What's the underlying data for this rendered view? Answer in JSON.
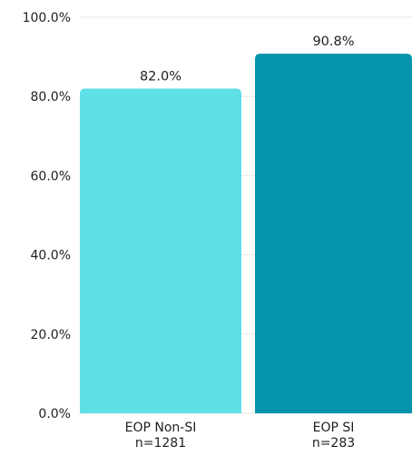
{
  "chart_data": {
    "type": "bar",
    "categories": [
      [
        "EOP Non-SI",
        "n=1281"
      ],
      [
        "EOP SI",
        "n=283"
      ]
    ],
    "values": [
      82.0,
      90.8
    ],
    "value_labels": [
      "82.0%",
      "90.8%"
    ],
    "y_ticks": [
      0,
      20,
      40,
      60,
      80,
      100
    ],
    "y_tick_labels": [
      "0.0%",
      "20.0%",
      "40.0%",
      "60.0%",
      "80.0%",
      "100.0%"
    ],
    "ylim": [
      0,
      100
    ],
    "grid": true,
    "legend": "none",
    "title": "",
    "xlabel": "",
    "ylabel": "",
    "colors": [
      "#5fe0e6",
      "#0494ac"
    ],
    "grid_color": "#e6e6e6",
    "text_color": "#1f1f1f"
  }
}
